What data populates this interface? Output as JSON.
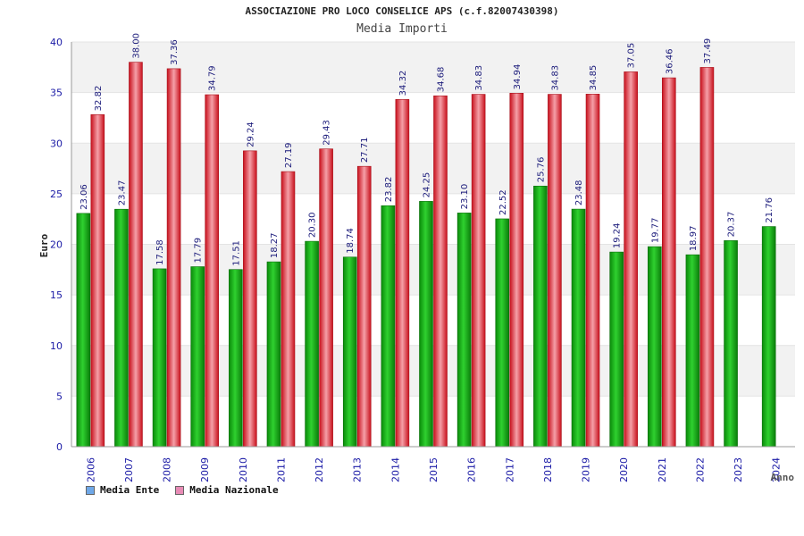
{
  "header": {
    "title": "ASSOCIAZIONE PRO LOCO CONSELICE APS (c.f.82007430398)",
    "subtitle": "Media Importi"
  },
  "legend": [
    {
      "label": "Media Ente",
      "color": "#6fa8e8"
    },
    {
      "label": "Media Nazionale",
      "color": "#e88bb5"
    }
  ],
  "colors": {
    "ente": "#13b513",
    "nazionale": "#e8303c",
    "axis_text": "#1a1aa6",
    "band": "#f2f2f2"
  },
  "chart_data": {
    "type": "bar",
    "title": "ASSOCIAZIONE PRO LOCO CONSELICE APS (c.f.82007430398)",
    "subtitle": "Media Importi",
    "xlabel": "Anno",
    "ylabel": "Euro",
    "ylim": [
      0,
      40
    ],
    "yticks": [
      0,
      5,
      10,
      15,
      20,
      25,
      30,
      35,
      40
    ],
    "grid": "horizontal bands",
    "legend_position": "bottom-left",
    "categories": [
      "2006",
      "2007",
      "2008",
      "2009",
      "2010",
      "2011",
      "2012",
      "2013",
      "2014",
      "2015",
      "2016",
      "2017",
      "2018",
      "2019",
      "2020",
      "2021",
      "2022",
      "2023",
      "2024"
    ],
    "series": [
      {
        "name": "Media Ente",
        "values": [
          23.06,
          23.47,
          17.58,
          17.79,
          17.51,
          18.27,
          20.3,
          18.74,
          23.82,
          24.25,
          23.1,
          22.52,
          25.76,
          23.48,
          19.24,
          19.77,
          18.97,
          20.37,
          21.76
        ],
        "labels": [
          "23.06",
          "23.47",
          "17.58",
          "17.79",
          "17.51",
          "18.27",
          "20.30",
          "18.74",
          "23.82",
          "24.25",
          "23.10",
          "22.52",
          "25.76",
          "23.48",
          "19.24",
          "19.77",
          "18.97",
          "20.37",
          "21.76"
        ]
      },
      {
        "name": "Media Nazionale",
        "values": [
          32.82,
          38.0,
          37.36,
          34.79,
          29.24,
          27.19,
          29.43,
          27.71,
          34.32,
          34.68,
          34.83,
          34.94,
          34.83,
          34.85,
          37.05,
          36.46,
          37.49,
          null,
          null
        ],
        "labels": [
          "32.82",
          "38.00",
          "37.36",
          "34.79",
          "29.24",
          "27.19",
          "29.43",
          "27.71",
          "34.32",
          "34.68",
          "34.83",
          "34.94",
          "34.83",
          "34.85",
          "37.05",
          "36.46",
          "37.49",
          null,
          null
        ]
      }
    ]
  }
}
